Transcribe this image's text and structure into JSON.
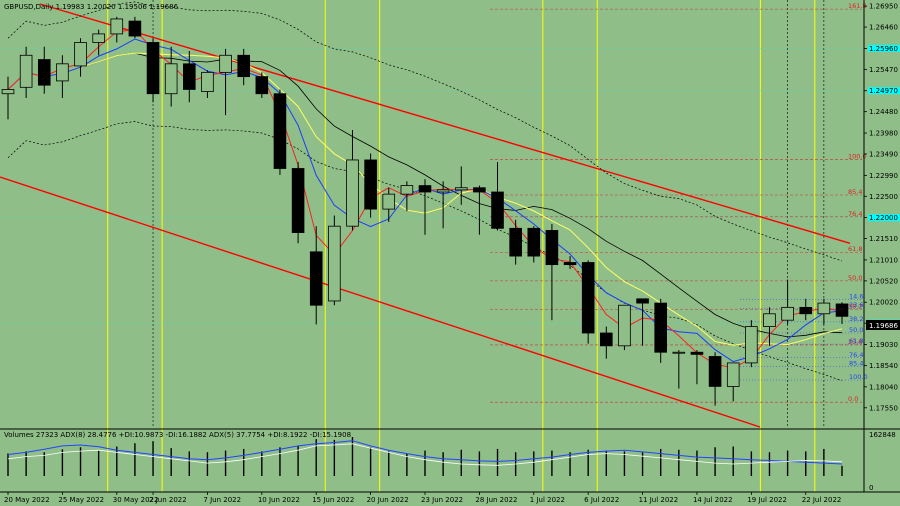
{
  "header": {
    "symbol_line": "GBPUSD,Daily  1.19983 1.20020 1.19506 1.19686"
  },
  "indicator_header": {
    "text": "Volumes 27323  ADX(8) 28.4776 +DI:10.9873 -DI:16.1882  ADX(5) 37.7754 +DI:8.1922 -DI:15.1908"
  },
  "current_price": "1.19686",
  "colors": {
    "background": "#8fbe88",
    "bull_candle": "#8fbe88",
    "bear_candle": "#000000",
    "channel": "#ff0000",
    "vertical_markers": "#ffff00",
    "fib_lines": "#cc3333",
    "ma_red": "#ff2020",
    "ma_blue": "#1a3cff",
    "ma_yellow": "#ffff66",
    "ma_black": "#000000",
    "highlight_band": "#00ffff",
    "adx_line": "#2244ff",
    "di_line": "#ffffff"
  },
  "chart_data": {
    "type": "candlestick",
    "title": "GBPUSD,Daily  1.19983 1.20020 1.19506 1.19686",
    "ylim": [
      1.171,
      1.27
    ],
    "price_ticks": [
      "1.26950",
      "1.26460",
      "1.25960",
      "1.25470",
      "1.24970",
      "1.24480",
      "1.23980",
      "1.23490",
      "1.22990",
      "1.22500",
      "1.22000",
      "1.21510",
      "1.21010",
      "1.20520",
      "1.20020",
      "1.19530",
      "1.19030",
      "1.18540",
      "1.18040",
      "1.17550"
    ],
    "date_labels": [
      "20 May 2022",
      "25 May 2022",
      "30 May 2022",
      "2 Jun 2022",
      "7 Jun 2022",
      "10 Jun 2022",
      "15 Jun 2022",
      "20 Jun 2022",
      "23 Jun 2022",
      "28 Jun 2022",
      "1 Jul 2022",
      "6 Jul 2022",
      "11 Jul 2022",
      "14 Jul 2022",
      "19 Jul 2022",
      "22 Jul 2022"
    ],
    "candles": [
      {
        "o": 1.249,
        "h": 1.253,
        "l": 1.243,
        "c": 1.25
      },
      {
        "o": 1.2505,
        "h": 1.26,
        "l": 1.248,
        "c": 1.258
      },
      {
        "o": 1.257,
        "h": 1.26,
        "l": 1.249,
        "c": 1.251
      },
      {
        "o": 1.252,
        "h": 1.258,
        "l": 1.248,
        "c": 1.256
      },
      {
        "o": 1.2555,
        "h": 1.262,
        "l": 1.253,
        "c": 1.261
      },
      {
        "o": 1.261,
        "h": 1.264,
        "l": 1.258,
        "c": 1.263
      },
      {
        "o": 1.263,
        "h": 1.267,
        "l": 1.261,
        "c": 1.2665
      },
      {
        "o": 1.266,
        "h": 1.267,
        "l": 1.262,
        "c": 1.2625
      },
      {
        "o": 1.261,
        "h": 1.262,
        "l": 1.247,
        "c": 1.249
      },
      {
        "o": 1.249,
        "h": 1.26,
        "l": 1.246,
        "c": 1.256
      },
      {
        "o": 1.256,
        "h": 1.259,
        "l": 1.247,
        "c": 1.25
      },
      {
        "o": 1.2495,
        "h": 1.2545,
        "l": 1.248,
        "c": 1.254
      },
      {
        "o": 1.254,
        "h": 1.2595,
        "l": 1.244,
        "c": 1.258
      },
      {
        "o": 1.258,
        "h": 1.2595,
        "l": 1.251,
        "c": 1.253
      },
      {
        "o": 1.253,
        "h": 1.254,
        "l": 1.248,
        "c": 1.249
      },
      {
        "o": 1.249,
        "h": 1.25,
        "l": 1.23,
        "c": 1.2315
      },
      {
        "o": 1.2315,
        "h": 1.233,
        "l": 1.214,
        "c": 1.2165
      },
      {
        "o": 1.212,
        "h": 1.218,
        "l": 1.195,
        "c": 1.1995
      },
      {
        "o": 1.2005,
        "h": 1.2205,
        "l": 1.1995,
        "c": 1.218
      },
      {
        "o": 1.218,
        "h": 1.2405,
        "l": 1.217,
        "c": 1.2335
      },
      {
        "o": 1.2335,
        "h": 1.235,
        "l": 1.22,
        "c": 1.222
      },
      {
        "o": 1.222,
        "h": 1.227,
        "l": 1.219,
        "c": 1.2255
      },
      {
        "o": 1.2255,
        "h": 1.2285,
        "l": 1.2215,
        "c": 1.2275
      },
      {
        "o": 1.2275,
        "h": 1.229,
        "l": 1.216,
        "c": 1.226
      },
      {
        "o": 1.226,
        "h": 1.2285,
        "l": 1.2175,
        "c": 1.2265
      },
      {
        "o": 1.2265,
        "h": 1.232,
        "l": 1.223,
        "c": 1.227
      },
      {
        "o": 1.227,
        "h": 1.2275,
        "l": 1.216,
        "c": 1.226
      },
      {
        "o": 1.226,
        "h": 1.233,
        "l": 1.217,
        "c": 1.2175
      },
      {
        "o": 1.2175,
        "h": 1.2195,
        "l": 1.209,
        "c": 1.211
      },
      {
        "o": 1.2175,
        "h": 1.218,
        "l": 1.2095,
        "c": 1.211
      },
      {
        "o": 1.217,
        "h": 1.2185,
        "l": 1.196,
        "c": 1.209
      },
      {
        "o": 1.2095,
        "h": 1.211,
        "l": 1.208,
        "c": 1.209
      },
      {
        "o": 1.2095,
        "h": 1.21,
        "l": 1.1905,
        "c": 1.193
      },
      {
        "o": 1.193,
        "h": 1.1945,
        "l": 1.187,
        "c": 1.19
      },
      {
        "o": 1.19,
        "h": 1.1995,
        "l": 1.189,
        "c": 1.1995
      },
      {
        "o": 1.201,
        "h": 1.201,
        "l": 1.19,
        "c": 1.2
      },
      {
        "o": 1.2,
        "h": 1.201,
        "l": 1.186,
        "c": 1.1885
      },
      {
        "o": 1.1885,
        "h": 1.189,
        "l": 1.18,
        "c": 1.1885
      },
      {
        "o": 1.1885,
        "h": 1.189,
        "l": 1.181,
        "c": 1.188
      },
      {
        "o": 1.1875,
        "h": 1.1885,
        "l": 1.176,
        "c": 1.1805
      },
      {
        "o": 1.1805,
        "h": 1.186,
        "l": 1.177,
        "c": 1.186
      },
      {
        "o": 1.186,
        "h": 1.196,
        "l": 1.185,
        "c": 1.1945
      },
      {
        "o": 1.1945,
        "h": 1.199,
        "l": 1.19,
        "c": 1.1975
      },
      {
        "o": 1.196,
        "h": 1.2055,
        "l": 1.195,
        "c": 1.199
      },
      {
        "o": 1.199,
        "h": 1.201,
        "l": 1.196,
        "c": 1.1975
      },
      {
        "o": 1.1975,
        "h": 1.201,
        "l": 1.195,
        "c": 1.2
      },
      {
        "o": 1.1998,
        "h": 1.2002,
        "l": 1.1951,
        "c": 1.1969
      }
    ],
    "fib_upper": [
      {
        "label": "161.8",
        "value": 1.2688
      },
      {
        "label": "100.0",
        "value": 1.2336
      },
      {
        "label": "85.4",
        "value": 1.2253
      },
      {
        "label": "76.4",
        "value": 1.2202
      },
      {
        "label": "61.8",
        "value": 1.2119
      },
      {
        "label": "50.0",
        "value": 1.2052
      },
      {
        "label": "38.2",
        "value": 1.1985
      },
      {
        "label": "23.6",
        "value": 1.1902
      },
      {
        "label": "0.0",
        "value": 1.1768
      }
    ],
    "fib_lower": [
      {
        "label": "14.6",
        "value": 1.2008
      },
      {
        "label": "23.6",
        "value": 1.1988
      },
      {
        "label": "38.2",
        "value": 1.1956
      },
      {
        "label": "50.0",
        "value": 1.193
      },
      {
        "label": "61.8",
        "value": 1.1904
      },
      {
        "label": "76.4",
        "value": 1.1872
      },
      {
        "label": "85.4",
        "value": 1.1852
      },
      {
        "label": "100.0",
        "value": 1.182
      }
    ],
    "price_highlights": [
      1.2596,
      1.2497,
      1.22,
      1.1953
    ],
    "volume_ticks": [
      "162848",
      "0"
    ],
    "volumes": [
      55,
      60,
      58,
      65,
      70,
      62,
      72,
      80,
      85,
      68,
      60,
      58,
      62,
      66,
      60,
      70,
      74,
      90,
      88,
      95,
      70,
      60,
      55,
      62,
      58,
      64,
      60,
      66,
      58,
      60,
      62,
      58,
      64,
      62,
      60,
      58,
      66,
      64,
      62,
      70,
      72,
      60,
      58,
      62,
      60,
      66,
      25
    ],
    "adx": [
      50,
      55,
      62,
      70,
      72,
      68,
      60,
      55,
      50,
      45,
      40,
      38,
      42,
      48,
      55,
      62,
      70,
      75,
      78,
      82,
      70,
      60,
      52,
      45,
      40,
      38,
      35,
      34,
      36,
      40,
      44,
      50,
      55,
      58,
      60,
      56,
      52,
      48,
      44,
      42,
      40,
      38,
      36,
      34,
      32,
      30,
      28
    ],
    "di": [
      40,
      45,
      48,
      55,
      58,
      60,
      55,
      50,
      45,
      40,
      35,
      30,
      33,
      38,
      45,
      52,
      60,
      70,
      72,
      75,
      65,
      55,
      45,
      38,
      32,
      28,
      26,
      25,
      28,
      32,
      38,
      44,
      50,
      52,
      50,
      46,
      42,
      38,
      34,
      30,
      28,
      30,
      32,
      34,
      36,
      35,
      33
    ]
  }
}
